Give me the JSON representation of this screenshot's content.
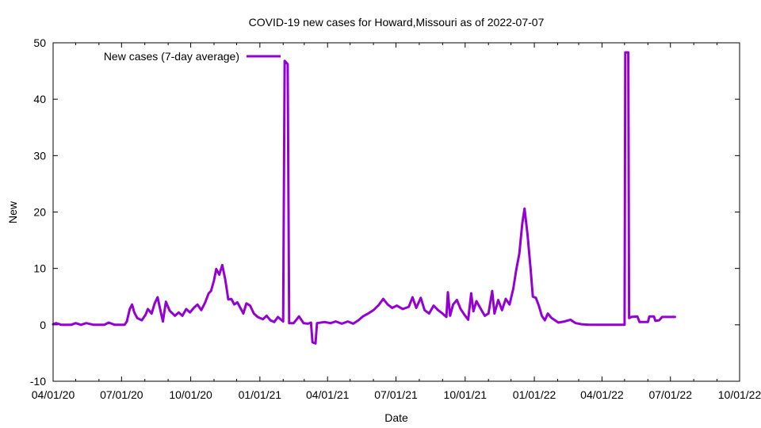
{
  "chart_data": {
    "type": "line",
    "title": "COVID-19 new cases for Howard,Missouri as of 2022-07-07",
    "xlabel": "Date",
    "ylabel": "New",
    "xlim": [
      "2020-04-01",
      "2022-10-01"
    ],
    "ylim": [
      -10,
      50
    ],
    "y_ticks": [
      -10,
      0,
      10,
      20,
      30,
      40,
      50
    ],
    "x_ticks": [
      {
        "date": "2020-04-01",
        "label": "04/01/20"
      },
      {
        "date": "2020-07-01",
        "label": "07/01/20"
      },
      {
        "date": "2020-10-01",
        "label": "10/01/20"
      },
      {
        "date": "2021-01-01",
        "label": "01/01/21"
      },
      {
        "date": "2021-04-01",
        "label": "04/01/21"
      },
      {
        "date": "2021-07-01",
        "label": "07/01/21"
      },
      {
        "date": "2021-10-01",
        "label": "10/01/21"
      },
      {
        "date": "2022-01-01",
        "label": "01/01/22"
      },
      {
        "date": "2022-04-01",
        "label": "04/01/22"
      },
      {
        "date": "2022-07-01",
        "label": "07/01/22"
      },
      {
        "date": "2022-10-01",
        "label": "10/01/22"
      }
    ],
    "grid": false,
    "legend_position": "top-left",
    "series": [
      {
        "name": "New cases (7-day average)",
        "color": "#9400d3",
        "points": [
          [
            "2020-04-01",
            0.1
          ],
          [
            "2020-04-05",
            0.3
          ],
          [
            "2020-04-12",
            0.0
          ],
          [
            "2020-04-25",
            0.0
          ],
          [
            "2020-05-01",
            0.3
          ],
          [
            "2020-05-08",
            0.0
          ],
          [
            "2020-05-15",
            0.3
          ],
          [
            "2020-05-25",
            0.0
          ],
          [
            "2020-06-08",
            0.0
          ],
          [
            "2020-06-14",
            0.4
          ],
          [
            "2020-06-22",
            0.0
          ],
          [
            "2020-07-05",
            0.0
          ],
          [
            "2020-07-08",
            0.6
          ],
          [
            "2020-07-12",
            2.8
          ],
          [
            "2020-07-15",
            3.6
          ],
          [
            "2020-07-18",
            2.2
          ],
          [
            "2020-07-22",
            1.2
          ],
          [
            "2020-07-28",
            0.8
          ],
          [
            "2020-08-02",
            1.8
          ],
          [
            "2020-08-05",
            2.8
          ],
          [
            "2020-08-10",
            2.0
          ],
          [
            "2020-08-14",
            3.8
          ],
          [
            "2020-08-18",
            4.9
          ],
          [
            "2020-08-21",
            3.0
          ],
          [
            "2020-08-25",
            0.6
          ],
          [
            "2020-08-29",
            4.1
          ],
          [
            "2020-09-03",
            2.5
          ],
          [
            "2020-09-10",
            1.6
          ],
          [
            "2020-09-15",
            2.2
          ],
          [
            "2020-09-20",
            1.6
          ],
          [
            "2020-09-25",
            2.8
          ],
          [
            "2020-09-30",
            2.2
          ],
          [
            "2020-10-05",
            3.0
          ],
          [
            "2020-10-10",
            3.6
          ],
          [
            "2020-10-15",
            2.6
          ],
          [
            "2020-10-20",
            3.9
          ],
          [
            "2020-10-25",
            5.6
          ],
          [
            "2020-10-28",
            6.0
          ],
          [
            "2020-11-01",
            7.9
          ],
          [
            "2020-11-04",
            9.9
          ],
          [
            "2020-11-08",
            8.9
          ],
          [
            "2020-11-12",
            10.6
          ],
          [
            "2020-11-16",
            8.0
          ],
          [
            "2020-11-20",
            4.5
          ],
          [
            "2020-11-24",
            4.6
          ],
          [
            "2020-11-28",
            3.6
          ],
          [
            "2020-12-02",
            4.0
          ],
          [
            "2020-12-06",
            3.0
          ],
          [
            "2020-12-10",
            2.0
          ],
          [
            "2020-12-14",
            3.8
          ],
          [
            "2020-12-19",
            3.4
          ],
          [
            "2020-12-24",
            2.0
          ],
          [
            "2020-12-29",
            1.4
          ],
          [
            "2021-01-05",
            1.0
          ],
          [
            "2021-01-10",
            1.6
          ],
          [
            "2021-01-15",
            0.8
          ],
          [
            "2021-01-20",
            0.5
          ],
          [
            "2021-01-25",
            1.4
          ],
          [
            "2021-02-01",
            0.6
          ],
          [
            "2021-02-03",
            46.8
          ],
          [
            "2021-02-07",
            46.2
          ],
          [
            "2021-02-09",
            0.3
          ],
          [
            "2021-02-15",
            0.3
          ],
          [
            "2021-02-22",
            1.5
          ],
          [
            "2021-02-28",
            0.3
          ],
          [
            "2021-03-06",
            0.2
          ],
          [
            "2021-03-10",
            0.4
          ],
          [
            "2021-03-12",
            -3.1
          ],
          [
            "2021-03-16",
            -3.3
          ],
          [
            "2021-03-18",
            0.3
          ],
          [
            "2021-03-28",
            0.5
          ],
          [
            "2021-04-05",
            0.3
          ],
          [
            "2021-04-12",
            0.6
          ],
          [
            "2021-04-20",
            0.2
          ],
          [
            "2021-04-28",
            0.6
          ],
          [
            "2021-05-05",
            0.2
          ],
          [
            "2021-05-12",
            0.8
          ],
          [
            "2021-05-18",
            1.5
          ],
          [
            "2021-05-25",
            2.0
          ],
          [
            "2021-06-01",
            2.6
          ],
          [
            "2021-06-08",
            3.5
          ],
          [
            "2021-06-14",
            4.6
          ],
          [
            "2021-06-20",
            3.6
          ],
          [
            "2021-06-26",
            3.0
          ],
          [
            "2021-07-02",
            3.4
          ],
          [
            "2021-07-10",
            2.8
          ],
          [
            "2021-07-18",
            3.2
          ],
          [
            "2021-07-23",
            4.9
          ],
          [
            "2021-07-28",
            3.0
          ],
          [
            "2021-08-03",
            4.8
          ],
          [
            "2021-08-08",
            2.6
          ],
          [
            "2021-08-14",
            2.0
          ],
          [
            "2021-08-20",
            3.4
          ],
          [
            "2021-08-26",
            2.6
          ],
          [
            "2021-09-01",
            2.0
          ],
          [
            "2021-09-06",
            1.4
          ],
          [
            "2021-09-08",
            5.8
          ],
          [
            "2021-09-11",
            1.6
          ],
          [
            "2021-09-15",
            3.6
          ],
          [
            "2021-09-20",
            4.4
          ],
          [
            "2021-09-25",
            2.8
          ],
          [
            "2021-09-30",
            1.8
          ],
          [
            "2021-10-05",
            0.9
          ],
          [
            "2021-10-09",
            5.6
          ],
          [
            "2021-10-12",
            2.4
          ],
          [
            "2021-10-16",
            4.2
          ],
          [
            "2021-10-21",
            3.0
          ],
          [
            "2021-10-27",
            1.6
          ],
          [
            "2021-11-01",
            2.0
          ],
          [
            "2021-11-06",
            6.0
          ],
          [
            "2021-11-09",
            2.0
          ],
          [
            "2021-11-14",
            4.4
          ],
          [
            "2021-11-19",
            2.6
          ],
          [
            "2021-11-24",
            4.6
          ],
          [
            "2021-11-29",
            3.6
          ],
          [
            "2021-12-04",
            6.4
          ],
          [
            "2021-12-08",
            9.8
          ],
          [
            "2021-12-12",
            12.6
          ],
          [
            "2021-12-16",
            18.0
          ],
          [
            "2021-12-19",
            20.6
          ],
          [
            "2021-12-23",
            16.0
          ],
          [
            "2021-12-27",
            10.0
          ],
          [
            "2021-12-30",
            5.0
          ],
          [
            "2022-01-03",
            4.8
          ],
          [
            "2022-01-07",
            3.4
          ],
          [
            "2022-01-11",
            1.6
          ],
          [
            "2022-01-15",
            0.8
          ],
          [
            "2022-01-19",
            2.0
          ],
          [
            "2022-01-24",
            1.2
          ],
          [
            "2022-02-02",
            0.4
          ],
          [
            "2022-02-10",
            0.6
          ],
          [
            "2022-02-18",
            0.9
          ],
          [
            "2022-02-25",
            0.3
          ],
          [
            "2022-03-05",
            0.1
          ],
          [
            "2022-03-15",
            0.0
          ],
          [
            "2022-04-05",
            0.0
          ],
          [
            "2022-04-25",
            0.0
          ],
          [
            "2022-05-01",
            0.0
          ],
          [
            "2022-05-02",
            48.3
          ],
          [
            "2022-05-06",
            48.3
          ],
          [
            "2022-05-07",
            1.2
          ],
          [
            "2022-05-10",
            1.4
          ],
          [
            "2022-05-18",
            1.5
          ],
          [
            "2022-05-21",
            0.5
          ],
          [
            "2022-06-01",
            0.5
          ],
          [
            "2022-06-03",
            1.5
          ],
          [
            "2022-06-09",
            1.5
          ],
          [
            "2022-06-11",
            0.7
          ],
          [
            "2022-06-16",
            0.8
          ],
          [
            "2022-06-20",
            1.4
          ],
          [
            "2022-06-30",
            1.4
          ],
          [
            "2022-07-07",
            1.4
          ]
        ]
      }
    ]
  }
}
